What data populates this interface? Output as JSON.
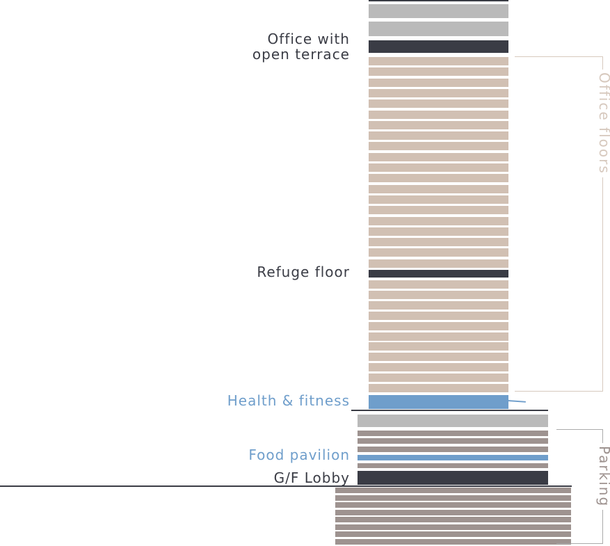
{
  "labels": {
    "office_terrace_line1": "Office with",
    "office_terrace_line2": "open terrace",
    "refuge": "Refuge floor",
    "health": "Health & fitness",
    "food": "Food pavilion",
    "lobby": "G/F Lobby"
  },
  "brackets": {
    "office_floors": "Office floors",
    "parking": "Parking"
  },
  "colors": {
    "office": "#d1c0b3",
    "mechanical": "#bababa",
    "special": "#3a3c45",
    "amenity": "#6f9ecb",
    "parking": "#9e9390",
    "bracket_office": "#d7c9be",
    "bracket_parking": "#aaaaaa",
    "ground_line": "#3a3c45"
  }
}
